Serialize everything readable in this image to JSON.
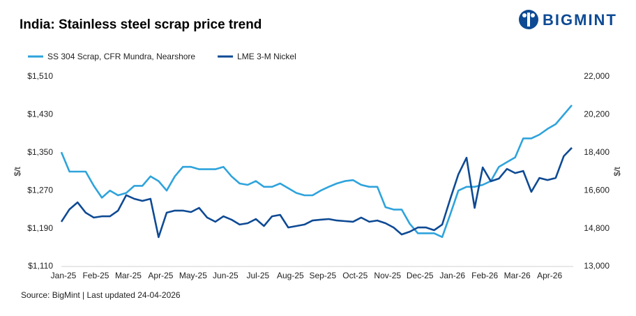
{
  "brand": "BIGMINT",
  "chart_data": {
    "type": "line",
    "title": "India: Stainless steel scrap price trend",
    "source": "Source: BigMint | Last updated 24-04-2026",
    "ylabel": "$/t",
    "y2label": "$/t",
    "categories": [
      "Jan-25",
      null,
      null,
      null,
      "Feb-25",
      null,
      null,
      null,
      "Mar-25",
      null,
      null,
      null,
      "Apr-25",
      null,
      null,
      null,
      "May-25",
      null,
      null,
      null,
      "Jun-25",
      null,
      null,
      null,
      "Jul-25",
      null,
      null,
      null,
      "Aug-25",
      null,
      null,
      null,
      "Sep-25",
      null,
      null,
      null,
      "Oct-25",
      null,
      null,
      null,
      "Nov-25",
      null,
      null,
      null,
      "Dec-25",
      null,
      null,
      null,
      "Jan-26",
      null,
      null,
      null,
      "Feb-26",
      null,
      null,
      null,
      "Mar-26",
      null,
      null,
      null,
      "Apr-26",
      null,
      null,
      null
    ],
    "ylim": [
      1110,
      1510
    ],
    "yticks": [
      {
        "value": 1110,
        "label": "$1,110"
      },
      {
        "value": 1190,
        "label": "$1,190"
      },
      {
        "value": 1270,
        "label": "$1,270"
      },
      {
        "value": 1350,
        "label": "$1,350"
      },
      {
        "value": 1430,
        "label": "$1,430"
      },
      {
        "value": 1510,
        "label": "$1,510"
      }
    ],
    "y2lim": [
      13000,
      22000
    ],
    "y2ticks": [
      {
        "value": 13000,
        "label": "13,000"
      },
      {
        "value": 14800,
        "label": "14,800"
      },
      {
        "value": 16600,
        "label": "16,600"
      },
      {
        "value": 18400,
        "label": "18,400"
      },
      {
        "value": 20200,
        "label": "20,200"
      },
      {
        "value": 22000,
        "label": "22,000"
      }
    ],
    "grid": false,
    "legend": "top-left",
    "series": [
      {
        "name": "SS 304 Scrap, CFR Mundra, Nearshore",
        "color": "#2ea3dc",
        "axis": "y",
        "values": [
          1351,
          1310,
          1310,
          1310,
          1280,
          1255,
          1270,
          1260,
          1265,
          1280,
          1280,
          1300,
          1290,
          1270,
          1300,
          1320,
          1320,
          1315,
          1315,
          1315,
          1320,
          1300,
          1285,
          1282,
          1290,
          1278,
          1278,
          1285,
          1275,
          1265,
          1260,
          1260,
          1270,
          1278,
          1285,
          1290,
          1292,
          1282,
          1278,
          1278,
          1235,
          1230,
          1230,
          1200,
          1180,
          1180,
          1180,
          1172,
          1220,
          1270,
          1278,
          1278,
          1282,
          1290,
          1320,
          1330,
          1340,
          1380,
          1380,
          1388,
          1400,
          1410,
          1430,
          1450
        ]
      },
      {
        "name": "LME 3-M Nickel",
        "color": "#0e4a94",
        "axis": "y2",
        "values": [
          15120,
          15710,
          16040,
          15550,
          15320,
          15380,
          15380,
          15650,
          16380,
          16210,
          16110,
          16210,
          14390,
          15550,
          15650,
          15650,
          15580,
          15780,
          15320,
          15120,
          15380,
          15220,
          14990,
          15050,
          15250,
          14920,
          15380,
          15450,
          14850,
          14920,
          14990,
          15180,
          15220,
          15250,
          15180,
          15150,
          15120,
          15320,
          15120,
          15180,
          15050,
          14850,
          14520,
          14650,
          14850,
          14850,
          14720,
          14990,
          16210,
          17370,
          18160,
          15780,
          17700,
          17040,
          17170,
          17630,
          17430,
          17530,
          16540,
          17200,
          17100,
          17200,
          18230,
          18630
        ]
      }
    ]
  }
}
